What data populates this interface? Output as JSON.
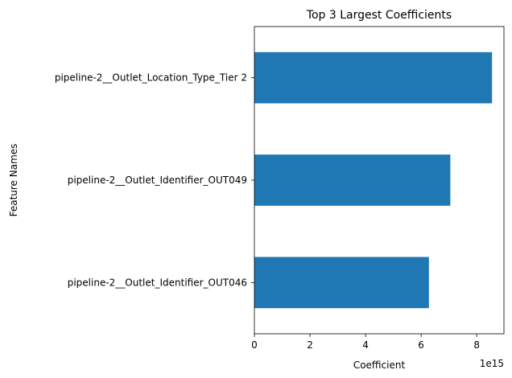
{
  "chart_data": {
    "type": "bar",
    "orientation": "horizontal",
    "title": "Top 3 Largest Coefficients",
    "xlabel": "Coefficient",
    "ylabel": "Feature Names",
    "x_offset_text": "1e15",
    "categories": [
      "pipeline-2__Outlet_Location_Type_Tier 2",
      "pipeline-2__Outlet_Identifier_OUT049",
      "pipeline-2__Outlet_Identifier_OUT046"
    ],
    "values": [
      8.55,
      7.05,
      6.28
    ],
    "xlim": [
      0,
      8.98
    ],
    "xticks": [
      "0",
      "2",
      "4",
      "6",
      "8"
    ],
    "xtick_values": [
      0,
      2,
      4,
      6,
      8
    ],
    "bar_color": "#1f77b4",
    "grid": false,
    "legend": "none"
  }
}
